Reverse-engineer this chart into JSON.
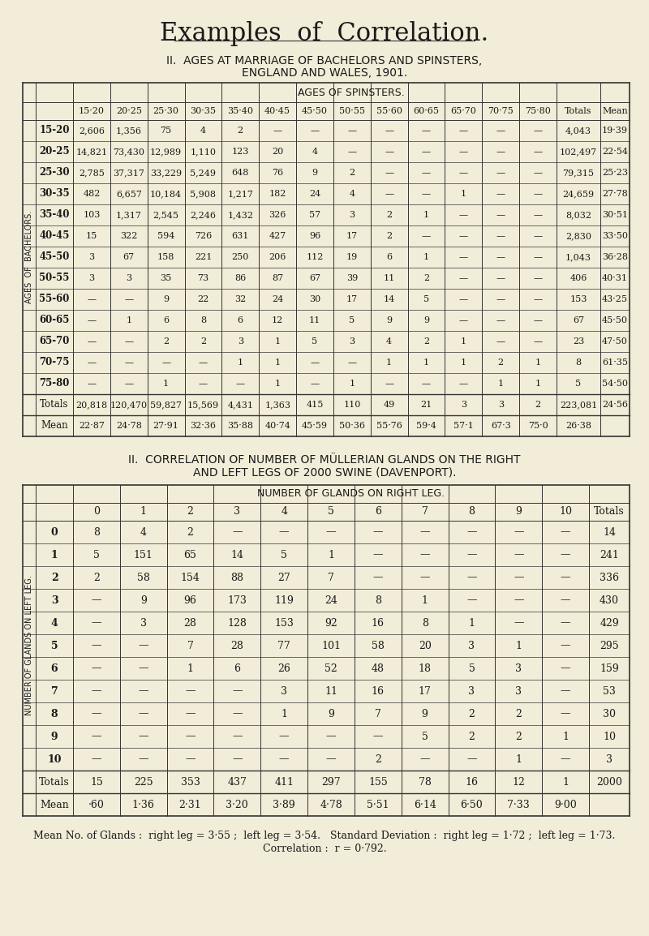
{
  "title": "Examples  of  Correlation.",
  "bg_color": "#f2edd8",
  "table1": {
    "heading1": "II.  AGES AT MARRIAGE OF BACHELORS AND SPINSTERS,",
    "heading2": "ENGLAND AND WALES, 1901.",
    "col_header": "AGES OF SPINSTERS.",
    "row_label_rotated": "AGES  OF  BACHELORS.",
    "col_ages": [
      "15·20",
      "20·25",
      "25·30",
      "30·35",
      "35·40",
      "40·45",
      "45·50",
      "50·55",
      "55·60",
      "60·65",
      "65·70",
      "70·75",
      "75·80",
      "Totals",
      "Mean"
    ],
    "row_labels": [
      "15-20",
      "20-25",
      "25-30",
      "30-35",
      "35-40",
      "40-45",
      "45-50",
      "50-55",
      "55-60",
      "60-65",
      "65-70",
      "70-75",
      "75-80",
      "Totals",
      "Mean"
    ],
    "data": [
      [
        "2,606",
        "1,356",
        "75",
        "4",
        "2",
        "—",
        "—",
        "—",
        "—",
        "—",
        "—",
        "—",
        "—",
        "4,043",
        "19·39"
      ],
      [
        "14,821",
        "73,430",
        "12,989",
        "1,110",
        "123",
        "20",
        "4",
        "—",
        "—",
        "—",
        "—",
        "—",
        "—",
        "102,497",
        "22·54"
      ],
      [
        "2,785",
        "37,317",
        "33,229",
        "5,249",
        "648",
        "76",
        "9",
        "2",
        "—",
        "—",
        "—",
        "—",
        "—",
        "79,315",
        "25·23"
      ],
      [
        "482",
        "6,657",
        "10,184",
        "5,908",
        "1,217",
        "182",
        "24",
        "4",
        "—",
        "—",
        "1",
        "—",
        "—",
        "24,659",
        "27·78"
      ],
      [
        "103",
        "1,317",
        "2,545",
        "2,246",
        "1,432",
        "326",
        "57",
        "3",
        "2",
        "1",
        "—",
        "—",
        "—",
        "8,032",
        "30·51"
      ],
      [
        "15",
        "322",
        "594",
        "726",
        "631",
        "427",
        "96",
        "17",
        "2",
        "—",
        "—",
        "—",
        "—",
        "2,830",
        "33·50"
      ],
      [
        "3",
        "67",
        "158",
        "221",
        "250",
        "206",
        "112",
        "19",
        "6",
        "1",
        "—",
        "—",
        "—",
        "1,043",
        "36·28"
      ],
      [
        "3",
        "3",
        "35",
        "73",
        "86",
        "87",
        "67",
        "39",
        "11",
        "2",
        "—",
        "—",
        "—",
        "406",
        "40·31"
      ],
      [
        "—",
        "—",
        "9",
        "22",
        "32",
        "24",
        "30",
        "17",
        "14",
        "5",
        "—",
        "—",
        "—",
        "153",
        "43·25"
      ],
      [
        "—",
        "1",
        "6",
        "8",
        "6",
        "12",
        "11",
        "5",
        "9",
        "9",
        "—",
        "—",
        "—",
        "67",
        "45·50"
      ],
      [
        "—",
        "—",
        "2",
        "2",
        "3",
        "1",
        "5",
        "3",
        "4",
        "2",
        "1",
        "—",
        "—",
        "23",
        "47·50"
      ],
      [
        "—",
        "—",
        "—",
        "—",
        "1",
        "1",
        "—",
        "—",
        "1",
        "1",
        "1",
        "2",
        "1",
        "8",
        "61·35"
      ],
      [
        "—",
        "—",
        "1",
        "—",
        "—",
        "1",
        "—",
        "1",
        "—",
        "—",
        "—",
        "1",
        "1",
        "5",
        "54·50"
      ],
      [
        "20,818",
        "120,470",
        "59,827",
        "15,569",
        "4,431",
        "1,363",
        "415",
        "110",
        "49",
        "21",
        "3",
        "3",
        "2",
        "223,081",
        "24·56"
      ],
      [
        "22·87",
        "24·78",
        "27·91",
        "32·36",
        "35·88",
        "40·74",
        "45·59",
        "50·36",
        "55·76",
        "59·4",
        "57·1",
        "67·3",
        "75·0",
        "26·38",
        ""
      ]
    ]
  },
  "table2": {
    "heading1": "II.  CORRELATION OF NUMBER OF MÜLLERIAN GLANDS ON THE RIGHT",
    "heading2": "AND LEFT LEGS OF 2000 SWINE (DAVENPORT).",
    "col_header": "NUMBER OF GLANDS ON RIGHT LEG.",
    "row_label_rotated": "NUMBER OF GLANDS ON LEFT LEG.",
    "col_nums": [
      "0",
      "1",
      "2",
      "3",
      "4",
      "5",
      "6",
      "7",
      "8",
      "9",
      "10",
      "Totals"
    ],
    "row_nums": [
      "0",
      "1",
      "2",
      "3",
      "4",
      "5",
      "6",
      "7",
      "8",
      "9",
      "10",
      "Totals",
      "Mean"
    ],
    "data": [
      [
        "8",
        "4",
        "2",
        "—",
        "—",
        "—",
        "—",
        "—",
        "—",
        "—",
        "—",
        "14"
      ],
      [
        "5",
        "151",
        "65",
        "14",
        "5",
        "1",
        "—",
        "—",
        "—",
        "—",
        "—",
        "241"
      ],
      [
        "2",
        "58",
        "154",
        "88",
        "27",
        "7",
        "—",
        "—",
        "—",
        "—",
        "—",
        "336"
      ],
      [
        "—",
        "9",
        "96",
        "173",
        "119",
        "24",
        "8",
        "1",
        "—",
        "—",
        "—",
        "430"
      ],
      [
        "—",
        "3",
        "28",
        "128",
        "153",
        "92",
        "16",
        "8",
        "1",
        "—",
        "—",
        "429"
      ],
      [
        "—",
        "—",
        "7",
        "28",
        "77",
        "101",
        "58",
        "20",
        "3",
        "1",
        "—",
        "295"
      ],
      [
        "—",
        "—",
        "1",
        "6",
        "26",
        "52",
        "48",
        "18",
        "5",
        "3",
        "—",
        "159"
      ],
      [
        "—",
        "—",
        "—",
        "—",
        "3",
        "11",
        "16",
        "17",
        "3",
        "3",
        "—",
        "53"
      ],
      [
        "—",
        "—",
        "—",
        "—",
        "1",
        "9",
        "7",
        "9",
        "2",
        "2",
        "—",
        "30"
      ],
      [
        "—",
        "—",
        "—",
        "—",
        "—",
        "—",
        "—",
        "5",
        "2",
        "2",
        "1",
        "10"
      ],
      [
        "—",
        "—",
        "—",
        "—",
        "—",
        "—",
        "2",
        "—",
        "—",
        "1",
        "—",
        "3"
      ],
      [
        "15",
        "225",
        "353",
        "437",
        "411",
        "297",
        "155",
        "78",
        "16",
        "12",
        "1",
        "2000"
      ],
      [
        "·60",
        "1·36",
        "2·31",
        "3·20",
        "3·89",
        "4·78",
        "5·51",
        "6·14",
        "6·50",
        "7·33",
        "9·00",
        ""
      ]
    ],
    "footer1": "Mean No. of Glands :  right leg = 3·55 ;  left leg = 3·54.   Standard Deviation :  right leg = 1·72 ;  left leg = 1·73.",
    "footer2": "Correlation :  r = 0·792."
  }
}
